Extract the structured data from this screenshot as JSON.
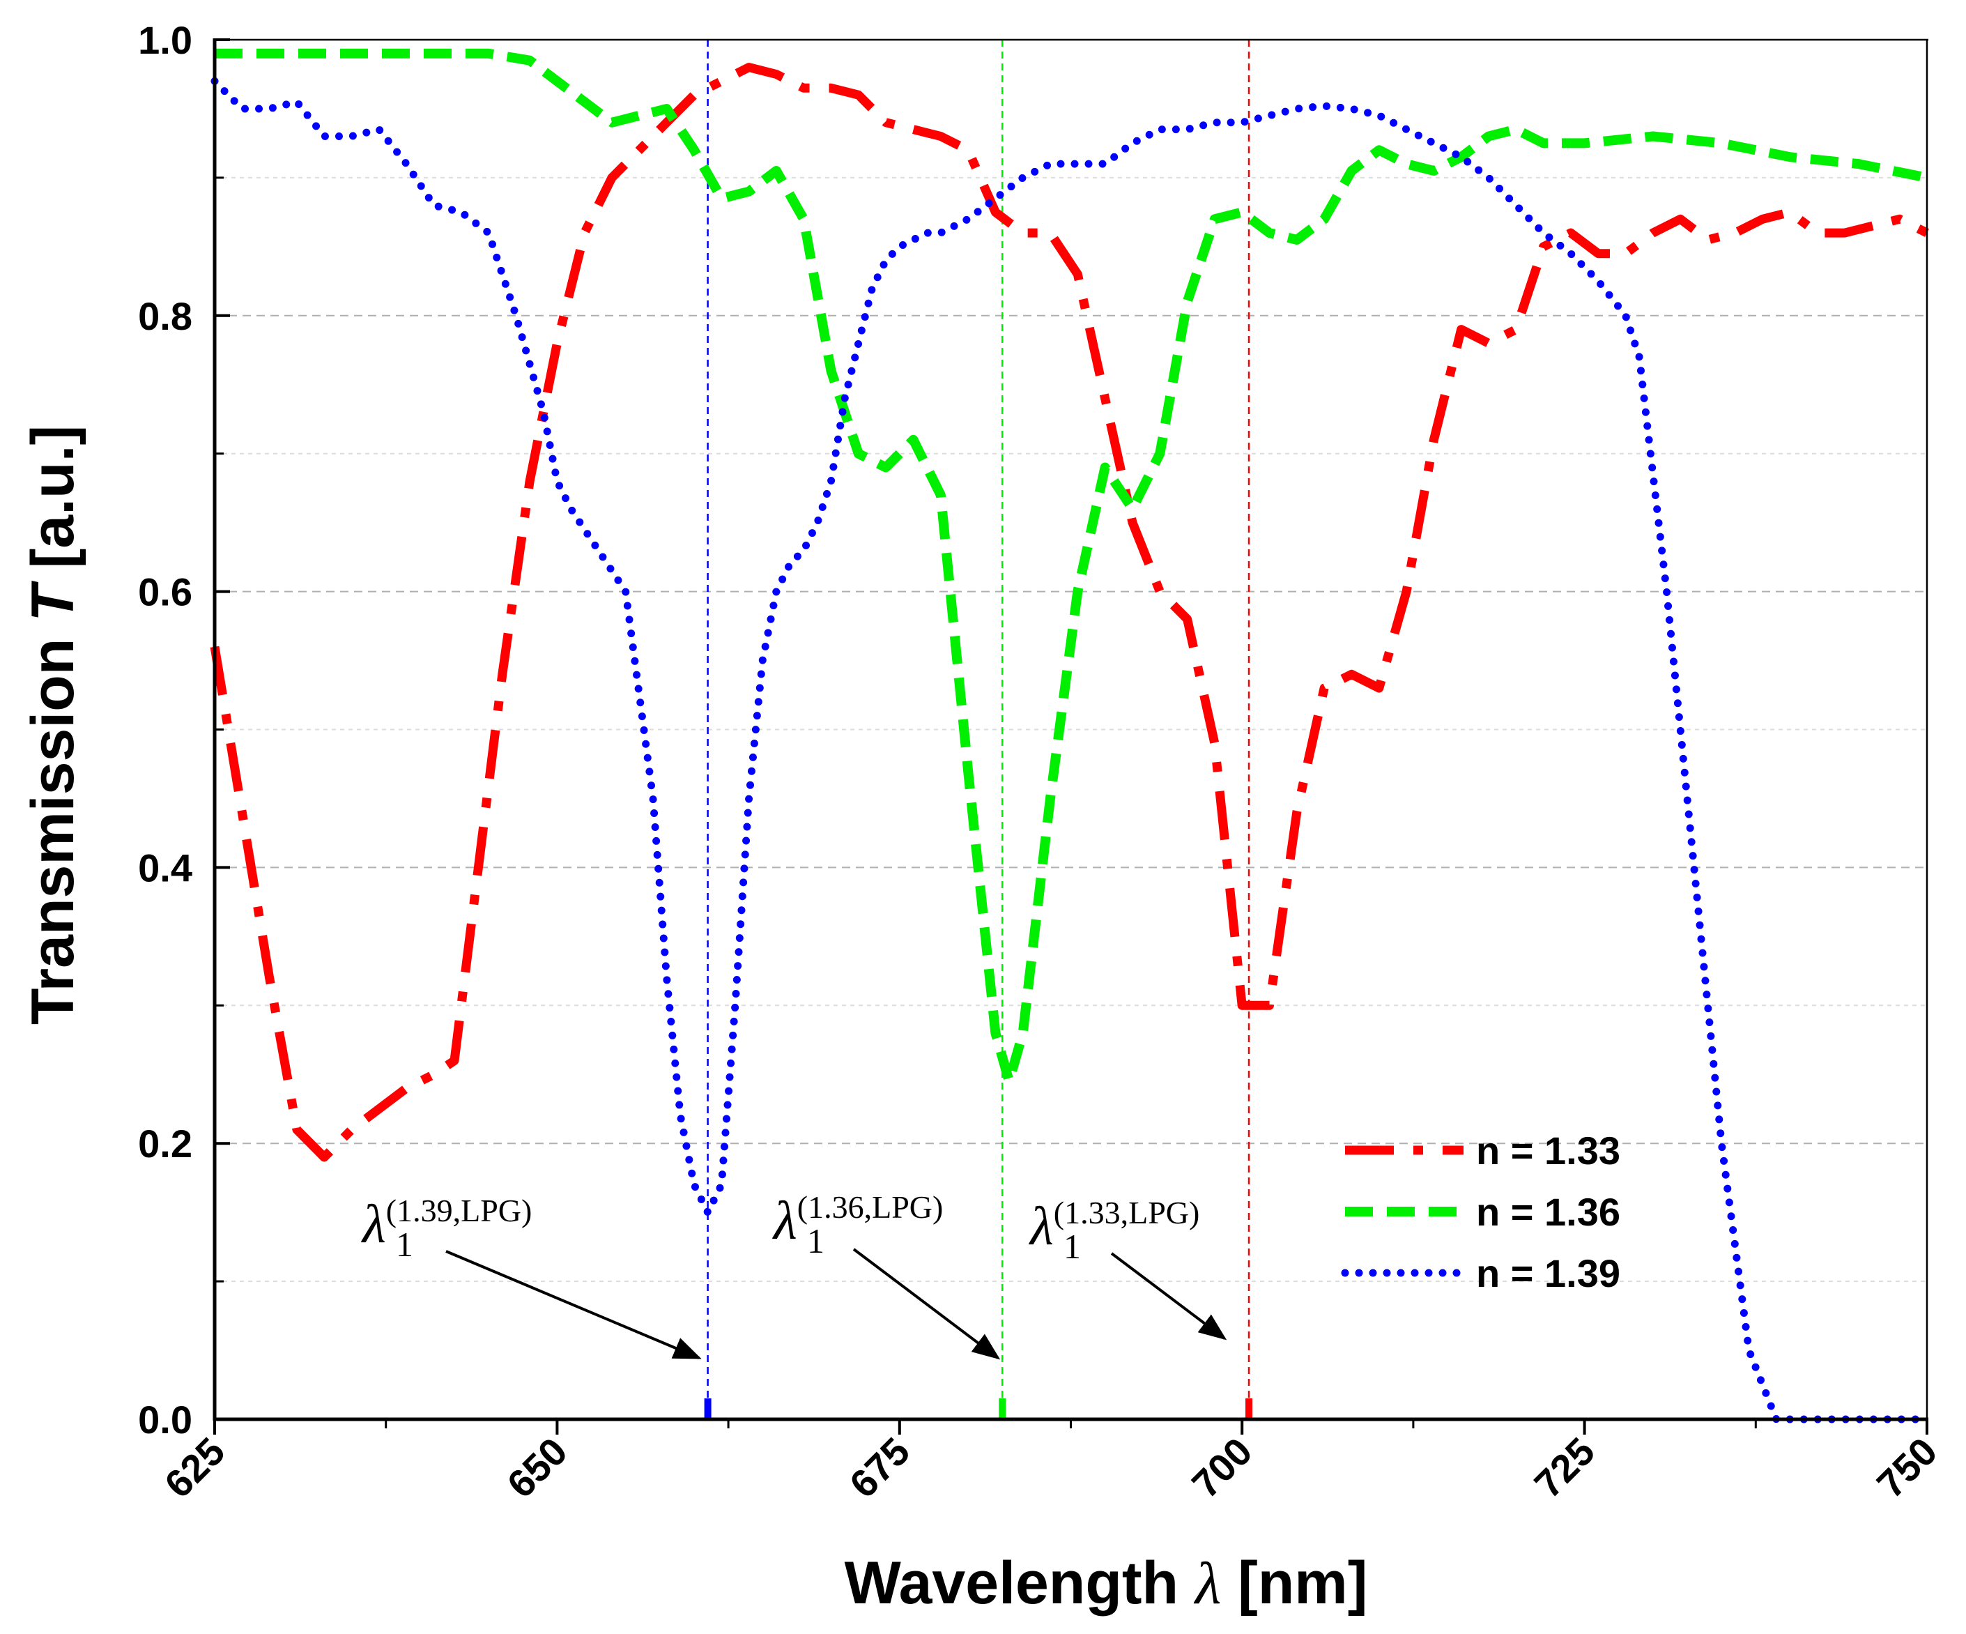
{
  "chart_data": {
    "type": "line",
    "xlabel_text": "Wavelength",
    "xlabel_symbol": "λ",
    "xlabel_unit": "[nm]",
    "ylabel_text": "Transmission",
    "ylabel_symbol": "T",
    "ylabel_unit": "[a.u.]",
    "xlim": [
      625,
      750
    ],
    "ylim": [
      0,
      1
    ],
    "xticks": [
      625,
      650,
      675,
      700,
      725,
      750
    ],
    "xtick_labels": [
      "625",
      "650",
      "675",
      "700",
      "725",
      "750"
    ],
    "yticks": [
      0,
      0.2,
      0.4,
      0.6,
      0.8,
      1.0
    ],
    "ytick_labels": [
      "0.0",
      "0.2",
      "0.4",
      "0.6",
      "0.8",
      "1.0"
    ],
    "grid": "horizontal dashed",
    "legend_position": "bottom-right",
    "series": [
      {
        "name": "n = 1.33",
        "color": "#ff0000",
        "style": "dash-dot",
        "x": [
          625,
          627,
          629,
          631,
          633,
          635,
          637,
          639,
          641,
          642.5,
          644,
          646,
          648,
          650,
          652,
          654,
          656,
          658,
          660,
          662,
          664,
          666,
          668,
          670,
          672,
          674,
          676,
          678,
          680,
          682,
          684,
          686,
          688,
          690,
          692,
          694,
          696,
          698,
          700,
          702,
          704,
          706,
          708,
          710,
          712,
          714,
          716,
          718,
          720,
          722,
          724,
          726,
          728,
          730,
          732,
          734,
          736,
          738,
          740,
          742,
          744,
          746,
          748,
          750
        ],
        "values": [
          0.56,
          0.44,
          0.32,
          0.21,
          0.19,
          0.21,
          0.225,
          0.24,
          0.25,
          0.26,
          0.38,
          0.54,
          0.68,
          0.78,
          0.86,
          0.9,
          0.92,
          0.94,
          0.96,
          0.97,
          0.98,
          0.975,
          0.965,
          0.965,
          0.96,
          0.94,
          0.935,
          0.93,
          0.92,
          0.875,
          0.86,
          0.86,
          0.83,
          0.74,
          0.65,
          0.6,
          0.58,
          0.49,
          0.3,
          0.3,
          0.44,
          0.53,
          0.54,
          0.53,
          0.6,
          0.71,
          0.79,
          0.78,
          0.79,
          0.85,
          0.86,
          0.845,
          0.845,
          0.86,
          0.87,
          0.855,
          0.86,
          0.87,
          0.875,
          0.86,
          0.86,
          0.865,
          0.87,
          0.86
        ]
      },
      {
        "name": "n = 1.36",
        "color": "#00ee00",
        "style": "dash",
        "x": [
          625,
          630,
          635,
          640,
          645,
          648,
          650,
          652,
          654,
          656,
          658,
          660,
          662,
          664,
          666,
          668,
          670,
          672,
          674,
          676,
          678,
          680,
          682,
          683,
          684,
          686,
          688,
          690,
          692,
          694,
          696,
          698,
          700,
          702,
          704,
          706,
          708,
          710,
          712,
          714,
          716,
          718,
          720,
          722,
          725,
          730,
          735,
          740,
          745,
          750
        ],
        "values": [
          0.99,
          0.99,
          0.99,
          0.99,
          0.99,
          0.985,
          0.97,
          0.955,
          0.94,
          0.945,
          0.95,
          0.92,
          0.885,
          0.89,
          0.905,
          0.87,
          0.76,
          0.7,
          0.69,
          0.71,
          0.67,
          0.47,
          0.28,
          0.245,
          0.28,
          0.45,
          0.6,
          0.69,
          0.66,
          0.7,
          0.81,
          0.87,
          0.875,
          0.86,
          0.855,
          0.87,
          0.905,
          0.92,
          0.91,
          0.905,
          0.915,
          0.93,
          0.935,
          0.925,
          0.925,
          0.93,
          0.925,
          0.915,
          0.91,
          0.9
        ]
      },
      {
        "name": "n = 1.39",
        "color": "#0000ff",
        "style": "dot",
        "x": [
          625,
          627,
          629,
          631,
          633,
          635,
          637,
          639,
          641,
          643,
          645,
          647,
          649,
          650,
          651,
          653,
          655,
          657,
          658,
          659,
          660,
          661,
          662,
          663,
          664,
          665,
          666,
          667,
          668,
          669,
          670,
          671,
          672,
          673,
          674,
          675,
          676,
          677,
          678,
          680,
          682,
          684,
          686,
          688,
          690,
          692,
          694,
          696,
          698,
          700,
          702,
          704,
          706,
          708,
          710,
          712,
          714,
          716,
          718,
          720,
          722,
          724,
          726,
          728,
          729,
          731,
          733,
          735,
          737,
          739,
          741,
          743,
          745,
          747,
          750
        ],
        "values": [
          0.97,
          0.95,
          0.95,
          0.955,
          0.93,
          0.93,
          0.935,
          0.91,
          0.88,
          0.875,
          0.86,
          0.8,
          0.73,
          0.68,
          0.66,
          0.63,
          0.6,
          0.45,
          0.32,
          0.22,
          0.17,
          0.15,
          0.17,
          0.3,
          0.45,
          0.55,
          0.6,
          0.62,
          0.63,
          0.65,
          0.68,
          0.74,
          0.78,
          0.82,
          0.84,
          0.85,
          0.855,
          0.86,
          0.86,
          0.87,
          0.885,
          0.9,
          0.91,
          0.91,
          0.91,
          0.925,
          0.935,
          0.935,
          0.94,
          0.94,
          0.945,
          0.95,
          0.952,
          0.95,
          0.945,
          0.935,
          0.925,
          0.915,
          0.9,
          0.88,
          0.86,
          0.845,
          0.825,
          0.8,
          0.77,
          0.6,
          0.4,
          0.2,
          0.05,
          0.0,
          0.0,
          0.0,
          0.0,
          0.0,
          0.0
        ]
      }
    ],
    "vertical_markers": [
      {
        "x": 661,
        "color": "#0000ff",
        "label_sup": "(1.39,LPG)"
      },
      {
        "x": 682.5,
        "color": "#00ee00",
        "label_sup": "(1.36,LPG)"
      },
      {
        "x": 700.5,
        "color": "#ff0000",
        "label_sup": "(1.33,LPG)"
      }
    ],
    "annotation_symbol": "λ",
    "annotation_sub": "1"
  }
}
